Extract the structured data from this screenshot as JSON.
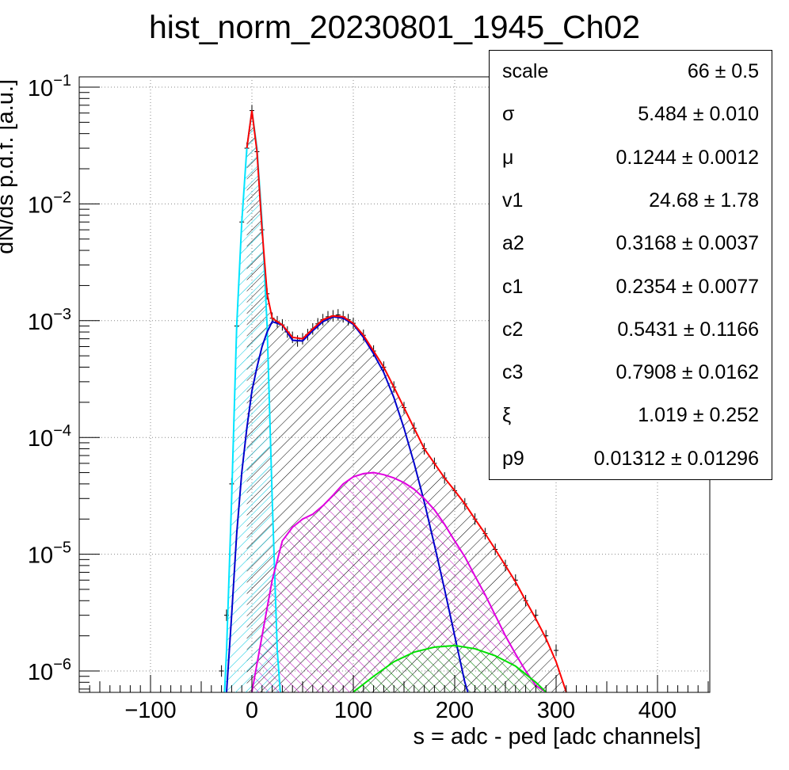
{
  "chart_data": {
    "type": "histogram",
    "title": "hist_norm_20230801_1945_Ch02",
    "xlabel": "s = adc - ped [adc channels]",
    "ylabel": "dN/ds p.d.f. [a.u.]",
    "xlim": [
      -170,
      460
    ],
    "ylim": [
      6.5e-07,
      0.12
    ],
    "yscale": "log",
    "grid": true,
    "x_ticks": [
      -100,
      0,
      100,
      200,
      300,
      400
    ],
    "x_tick_labels": [
      "−100",
      "0",
      "100",
      "200",
      "300",
      "400"
    ],
    "y_ticks": [
      1e-06,
      1e-05,
      0.0001,
      0.001,
      0.01,
      0.1
    ],
    "y_tick_labels": [
      {
        "base": "10",
        "exp": "−6"
      },
      {
        "base": "10",
        "exp": "−5"
      },
      {
        "base": "10",
        "exp": "−4"
      },
      {
        "base": "10",
        "exp": "−3"
      },
      {
        "base": "10",
        "exp": "−2"
      },
      {
        "base": "10",
        "exp": "−1"
      }
    ],
    "series": [
      {
        "kind": "data",
        "color": "#000000",
        "x": [
          -30,
          -25,
          -20,
          -15,
          -10,
          -5,
          0,
          5,
          10,
          15,
          20,
          25,
          30,
          35,
          40,
          45,
          50,
          55,
          60,
          65,
          70,
          75,
          80,
          85,
          90,
          95,
          100,
          110,
          120,
          130,
          140,
          150,
          160,
          170,
          180,
          190,
          200,
          210,
          220,
          230,
          240,
          250,
          260,
          270,
          280,
          290,
          300
        ],
        "y": [
          1e-06,
          3e-06,
          4e-05,
          0.0009,
          0.007,
          0.03,
          0.063,
          0.028,
          0.006,
          0.0017,
          0.00105,
          0.00098,
          0.00092,
          0.0008,
          0.00072,
          0.00067,
          0.0007,
          0.00076,
          0.00085,
          0.00094,
          0.00102,
          0.00108,
          0.0011,
          0.00112,
          0.00108,
          0.00102,
          0.00095,
          0.00075,
          0.00055,
          0.0004,
          0.00027,
          0.00018,
          0.00012,
          8e-05,
          6e-05,
          4.5e-05,
          3.5e-05,
          2.7e-05,
          2e-05,
          1.5e-05,
          1.1e-05,
          8e-06,
          6e-06,
          4e-06,
          3e-06,
          2e-06,
          1.5e-06
        ]
      },
      {
        "kind": "fit-total",
        "color": "#ff0000",
        "x": [
          -5,
          0,
          5,
          10,
          15,
          20,
          30,
          40,
          50,
          60,
          70,
          80,
          90,
          100,
          110,
          120,
          130,
          140,
          150,
          160,
          170,
          180,
          190,
          200,
          210,
          220,
          230,
          240,
          250,
          260,
          270,
          280,
          290,
          300,
          310
        ],
        "y": [
          0.03,
          0.063,
          0.028,
          0.006,
          0.0017,
          0.00105,
          0.00092,
          0.00072,
          0.0007,
          0.00085,
          0.00102,
          0.0011,
          0.00108,
          0.00095,
          0.00075,
          0.00055,
          0.0004,
          0.00027,
          0.00018,
          0.00012,
          8e-05,
          6e-05,
          4.5e-05,
          3.5e-05,
          2.7e-05,
          2e-05,
          1.5e-05,
          1.1e-05,
          8e-06,
          5.8e-06,
          4e-06,
          2.8e-06,
          1.9e-06,
          1.2e-06,
          6.6e-07
        ]
      },
      {
        "kind": "pedestal",
        "color": "#00e5ff",
        "x": [
          -27,
          -25,
          -20,
          -15,
          -10,
          -5,
          0,
          5,
          10,
          15,
          20,
          25,
          28
        ],
        "y": [
          6.6e-07,
          1.5e-06,
          3e-05,
          0.0009,
          0.007,
          0.03,
          0.063,
          0.03,
          0.007,
          0.0009,
          3e-05,
          1.5e-06,
          6.6e-07
        ]
      },
      {
        "kind": "1pe",
        "color": "#0000cc",
        "x": [
          -25,
          -20,
          -15,
          -10,
          -5,
          0,
          5,
          10,
          15,
          20,
          30,
          40,
          50,
          60,
          70,
          80,
          90,
          100,
          110,
          120,
          130,
          140,
          150,
          160,
          170,
          180,
          190,
          200,
          210,
          213
        ],
        "y": [
          6.6e-07,
          3e-06,
          1.5e-05,
          5e-05,
          0.00012,
          0.00025,
          0.0004,
          0.0006,
          0.0008,
          0.00098,
          0.00092,
          0.00068,
          0.00067,
          0.00082,
          0.00098,
          0.00108,
          0.00105,
          0.00093,
          0.00072,
          0.00052,
          0.00036,
          0.00022,
          0.00012,
          6e-05,
          2.8e-05,
          1.2e-05,
          5e-06,
          2e-06,
          8e-07,
          6.6e-07
        ]
      },
      {
        "kind": "2pe",
        "color": "#e000e0",
        "x": [
          0,
          10,
          20,
          30,
          40,
          50,
          60,
          70,
          80,
          90,
          100,
          110,
          120,
          130,
          140,
          150,
          160,
          170,
          180,
          190,
          200,
          210,
          220,
          230,
          240,
          250,
          260,
          270,
          280,
          290
        ],
        "y": [
          6.6e-07,
          2e-06,
          6e-06,
          1.3e-05,
          1.7e-05,
          2e-05,
          2.2e-05,
          2.6e-05,
          3.2e-05,
          4e-05,
          4.6e-05,
          4.9e-05,
          5e-05,
          4.8e-05,
          4.5e-05,
          4.1e-05,
          3.6e-05,
          3e-05,
          2.4e-05,
          1.8e-05,
          1.3e-05,
          9.5e-06,
          6.5e-06,
          4.5e-06,
          3e-06,
          2e-06,
          1.4e-06,
          1e-06,
          7.5e-07,
          6.6e-07
        ]
      },
      {
        "kind": "3pe",
        "color": "#00e000",
        "x": [
          100,
          120,
          140,
          160,
          180,
          200,
          220,
          240,
          260,
          280,
          290
        ],
        "y": [
          6.6e-07,
          9e-07,
          1.2e-06,
          1.45e-06,
          1.6e-06,
          1.65e-06,
          1.55e-06,
          1.35e-06,
          1.1e-06,
          8e-07,
          6.6e-07
        ]
      }
    ],
    "stats": [
      {
        "name": "scale",
        "value": "66 ± 0.5"
      },
      {
        "name": "σ",
        "value": "5.484 ± 0.010"
      },
      {
        "name": "μ",
        "value": "0.1244 ± 0.0012"
      },
      {
        "name": "v1",
        "value": "24.68 ± 1.78"
      },
      {
        "name": "a2",
        "value": "0.3168 ± 0.0037"
      },
      {
        "name": "c1",
        "value": "0.2354 ± 0.0077"
      },
      {
        "name": "c2",
        "value": "0.5431 ± 0.1166"
      },
      {
        "name": "c3",
        "value": "0.7908 ± 0.0162"
      },
      {
        "name": "ξ",
        "value": "1.019 ± 0.252"
      },
      {
        "name": "p9",
        "value": "0.01312 ± 0.01296"
      }
    ]
  }
}
